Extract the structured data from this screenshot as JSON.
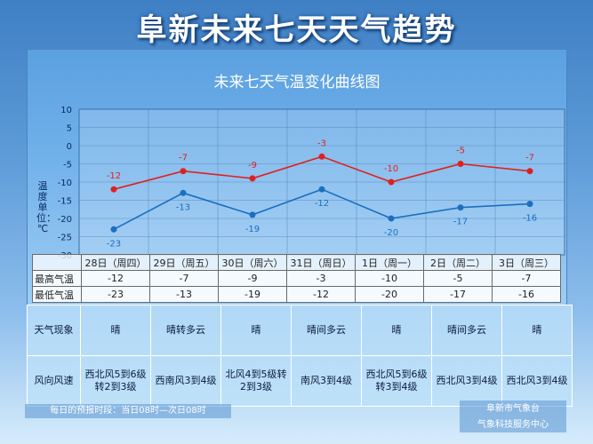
{
  "page": {
    "title": "阜新未来七天天气趋势",
    "footer_note": "每日的预报时段：当日08时—次日08时",
    "org_line1": "阜新市气象台",
    "org_line2": "气象科技服务中心"
  },
  "chart_data": {
    "type": "line",
    "title": "未来七天气温变化曲线图",
    "ylabel": "温度单位：℃",
    "ylim": [
      -30,
      10
    ],
    "yticks": [
      10,
      5,
      0,
      -5,
      -10,
      -15,
      -20,
      -25,
      -30
    ],
    "categories": [
      "28日（周四）",
      "29日（周五）",
      "30日（周六）",
      "31日（周日）",
      "1日（周一）",
      "2日（周二）",
      "3日（周三）"
    ],
    "series": [
      {
        "name": "最高气温",
        "color": "#e02020",
        "values": [
          -12,
          -7,
          -9,
          -3,
          -10,
          -5,
          -7
        ]
      },
      {
        "name": "最低气温",
        "color": "#1a6fc0",
        "values": [
          -23,
          -13,
          -19,
          -12,
          -20,
          -17,
          -16
        ]
      }
    ],
    "grid": true
  },
  "table": {
    "high_label": "最高气温",
    "low_label": "最低气温"
  },
  "info": {
    "weather_label": "天气现象",
    "wind_label": "风向风速",
    "weather": [
      "晴",
      "晴转多云",
      "晴",
      "晴间多云",
      "晴",
      "晴间多云",
      "晴"
    ],
    "wind": [
      "西北风5到6级转2到3级",
      "西南风3到4级",
      "北风4到5级转2到3级",
      "南风3到4级",
      "西北风5到6级转3到4级",
      "西北风3到4级",
      "西北风3到4级"
    ]
  }
}
